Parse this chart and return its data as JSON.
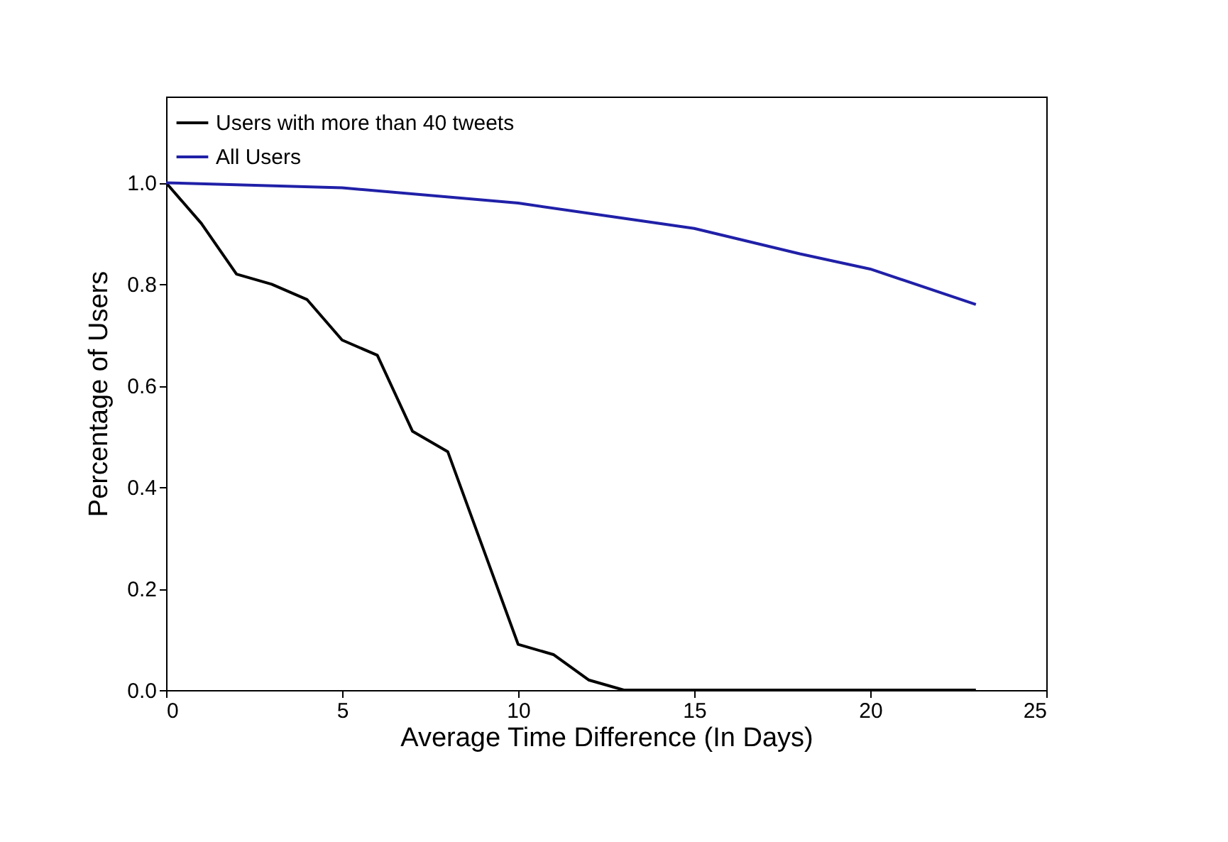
{
  "chart_data": {
    "type": "line",
    "xlabel": "Average Time Difference (In Days)",
    "ylabel": "Percentage of Users",
    "xlim": [
      0,
      25
    ],
    "xticks": [
      0,
      5,
      10,
      15,
      20,
      25
    ],
    "ylim": [
      0,
      1.17
    ],
    "yticks": [
      {
        "value": 0,
        "label": "0.0"
      },
      {
        "value": 0.2,
        "label": "0.2"
      },
      {
        "value": 0.4,
        "label": "0.4"
      },
      {
        "value": 0.6,
        "label": "0.6"
      },
      {
        "value": 0.8,
        "label": "0.8"
      },
      {
        "value": 1,
        "label": "1.0"
      }
    ],
    "grid": false,
    "legend": "top left",
    "marker": "none",
    "line_style": "solid",
    "series": [
      {
        "name": "Users with more than 40 tweets",
        "color": "#000000",
        "x": [
          0,
          1,
          2,
          3,
          4,
          5,
          6,
          7,
          8,
          9,
          10,
          11,
          12,
          13,
          14,
          15,
          16,
          17,
          18,
          19,
          20,
          21,
          22,
          23
        ],
        "values": [
          1.0,
          0.92,
          0.82,
          0.8,
          0.77,
          0.69,
          0.66,
          0.51,
          0.47,
          0.28,
          0.09,
          0.07,
          0.02,
          0,
          0,
          0,
          0,
          0,
          0,
          0,
          0,
          0,
          0,
          0
        ]
      },
      {
        "name": "All Users",
        "color": "#2020a8",
        "x": [
          0,
          5,
          10,
          13,
          15,
          18,
          20,
          23
        ],
        "values": [
          1.0,
          0.99,
          0.96,
          0.93,
          0.91,
          0.86,
          0.83,
          0.76
        ]
      }
    ]
  }
}
